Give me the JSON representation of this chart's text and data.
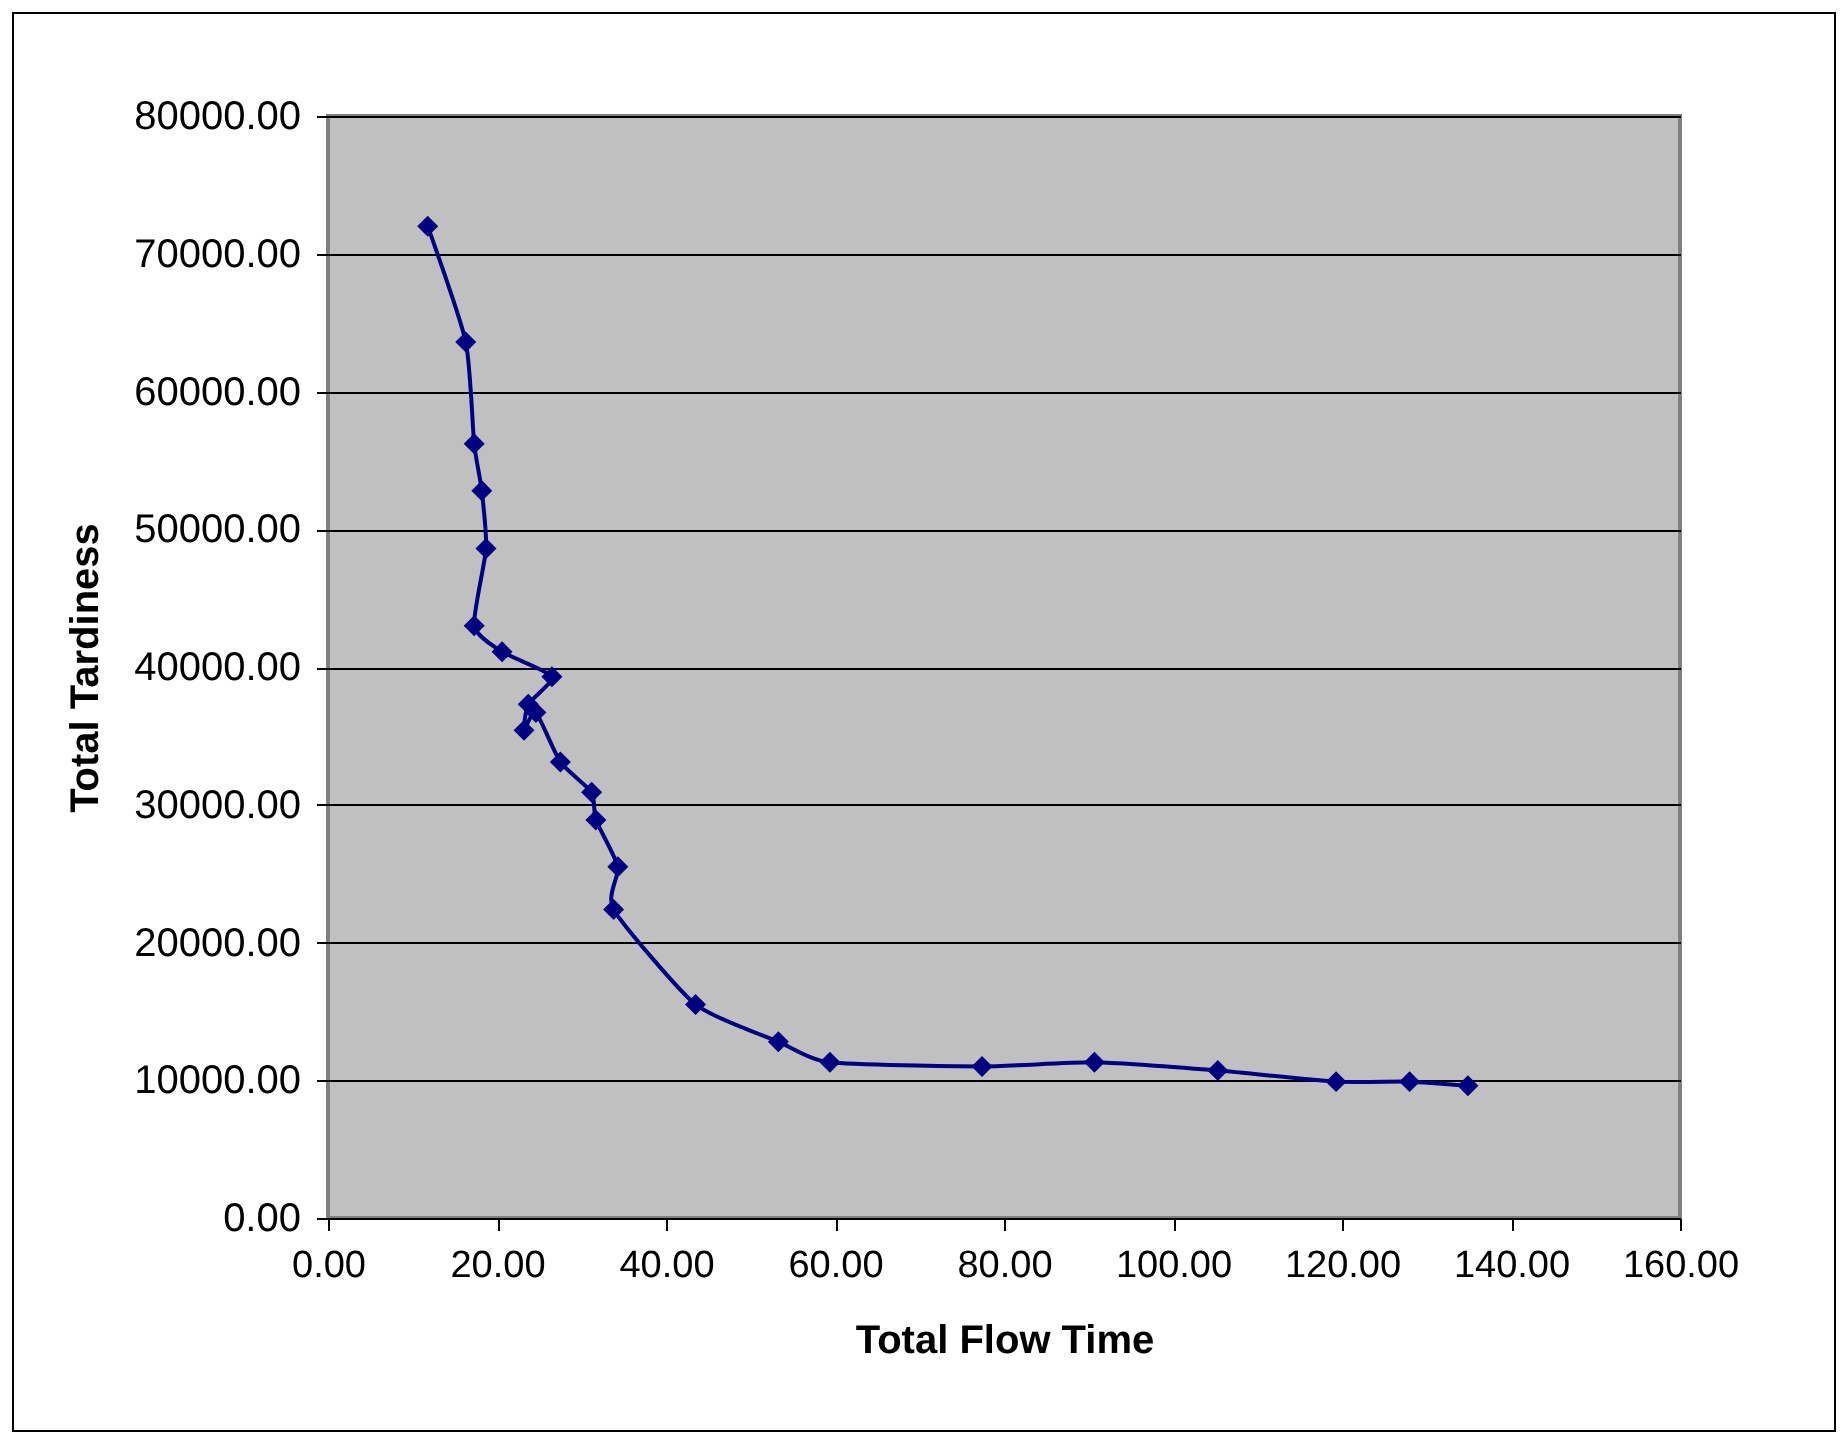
{
  "chart_data": {
    "type": "line",
    "xlabel": "Total Flow Time",
    "ylabel": "Total Tardiness",
    "x": [
      11.8,
      16.3,
      17.3,
      18.2,
      18.7,
      17.3,
      20.6,
      26.5,
      23.7,
      23.2,
      24.6,
      27.5,
      31.2,
      31.7,
      34.3,
      33.8,
      43.5,
      53.3,
      59.4,
      77.4,
      90.7,
      105.3,
      119.3,
      128.0,
      134.9
    ],
    "series": [
      {
        "color": "#000080",
        "values": [
          72000,
          63600,
          56200,
          52800,
          48600,
          43000,
          41100,
          39300,
          37300,
          35400,
          36700,
          33100,
          30900,
          28900,
          25500,
          22400,
          15500,
          12800,
          11300,
          11000,
          11300,
          10700,
          9900,
          9900,
          9600
        ]
      }
    ],
    "xlim": [
      0,
      160
    ],
    "xticks": [
      {
        "value": 0,
        "label": "0.00"
      },
      {
        "value": 20,
        "label": "20.00"
      },
      {
        "value": 40,
        "label": "40.00"
      },
      {
        "value": 60,
        "label": "60.00"
      },
      {
        "value": 80,
        "label": "80.00"
      },
      {
        "value": 100,
        "label": "100.00"
      },
      {
        "value": 120,
        "label": "120.00"
      },
      {
        "value": 140,
        "label": "140.00"
      },
      {
        "value": 160,
        "label": "160.00"
      }
    ],
    "ylim": [
      0,
      80000
    ],
    "yticks": [
      {
        "value": 0,
        "label": "0.00"
      },
      {
        "value": 10000,
        "label": "10000.00"
      },
      {
        "value": 20000,
        "label": "20000.00"
      },
      {
        "value": 30000,
        "label": "30000.00"
      },
      {
        "value": 40000,
        "label": "40000.00"
      },
      {
        "value": 50000,
        "label": "50000.00"
      },
      {
        "value": 60000,
        "label": "60000.00"
      },
      {
        "value": 70000,
        "label": "70000.00"
      },
      {
        "value": 80000,
        "label": "80000.00"
      }
    ],
    "grid": "y",
    "marker": "diamond",
    "line_style": "solid",
    "legend": false
  }
}
